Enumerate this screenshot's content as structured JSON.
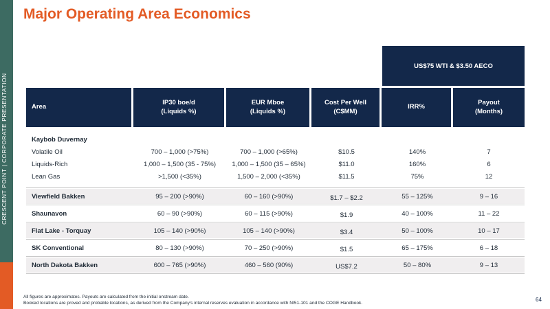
{
  "sidebar": {
    "text": "CRESCENT POINT   |   CORPORATE PRESENTATION"
  },
  "title": "Major Operating Area Economics",
  "table": {
    "super_header": "US$75 WTI & $3.50 AECO",
    "headers": [
      "Area",
      "IP30 boe/d\n(Liquids %)",
      "EUR Mboe\n(Liquids %)",
      "Cost Per Well\n(C$MM)",
      "IRR%",
      "Payout\n(Months)"
    ],
    "kaybob": {
      "title": "Kaybob Duvernay",
      "rows": [
        [
          "Volatile Oil",
          "700 – 1,000 (>75%)",
          "700 – 1,000 (>65%)",
          "$10.5",
          "140%",
          "7"
        ],
        [
          "Liquids-Rich",
          "1,000 – 1,500 (35 - 75%)",
          "1,000 – 1,500 (35 – 65%)",
          "$11.0",
          "160%",
          "6"
        ],
        [
          "Lean Gas",
          ">1,500 (<35%)",
          "1,500 – 2,000 (<35%)",
          "$11.5",
          "75%",
          "12"
        ]
      ]
    },
    "rows": [
      [
        "Viewfield Bakken",
        "95 – 200 (>90%)",
        "60 – 160 (>90%)",
        "$1.7 – $2.2",
        "55 – 125%",
        "9 – 16"
      ],
      [
        "Shaunavon",
        "60 – 90 (>90%)",
        "60 – 115 (>90%)",
        "$1.9",
        "40 – 100%",
        "11 – 22"
      ],
      [
        "Flat Lake - Torquay",
        "105 – 140 (>90%)",
        "105 – 140 (>90%)",
        "$3.4",
        "50 – 100%",
        "10 – 17"
      ],
      [
        "SK Conventional",
        "80 – 130 (>90%)",
        "70 – 250 (>90%)",
        "$1.5",
        "65 – 175%",
        "6 – 18"
      ],
      [
        "North Dakota Bakken",
        "600 – 765 (>90%)",
        "460 – 560 (90%)",
        "US$7.2",
        "50 – 80%",
        "9 – 13"
      ]
    ]
  },
  "footnotes": [
    "All figures are approximates. Payouts are calculated from the initial onstream date.",
    "Booked locations are proved and probable locations, as derived from the Company's internal reserves evaluation in accordance with NI51-101 and the COGE Handbook."
  ],
  "page_number": "64",
  "colors": {
    "accent": "#e35b25",
    "navy": "#13284a",
    "sidebar": "#3d6b62"
  }
}
